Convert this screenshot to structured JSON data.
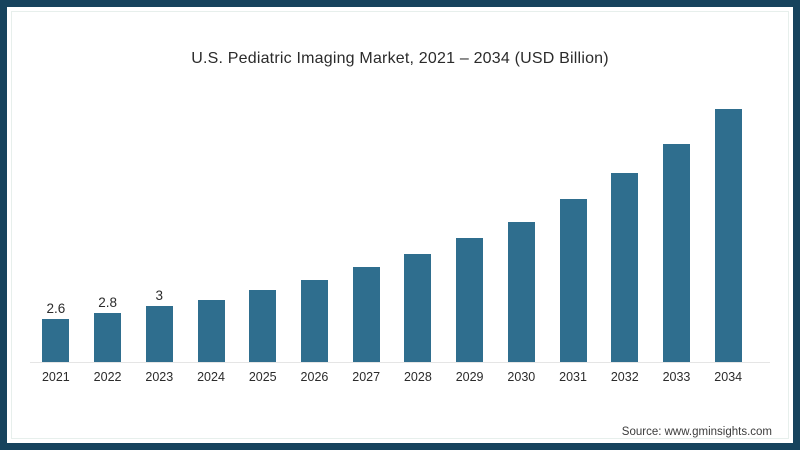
{
  "title": "U.S. Pediatric Imaging Market, 2021 – 2034 (USD Billion)",
  "source": "Source: www.gminsights.com",
  "frame": {
    "border_color": "#16435D",
    "inner_line_color": "#E7EFEC",
    "background": "#FFFFFF"
  },
  "chart_data": {
    "type": "bar",
    "title": "U.S. Pediatric Imaging Market, 2021 – 2034 (USD Billion)",
    "xlabel": "",
    "ylabel": "",
    "categories": [
      "2021",
      "2022",
      "2023",
      "2024",
      "2025",
      "2026",
      "2027",
      "2028",
      "2029",
      "2030",
      "2031",
      "2032",
      "2033",
      "2034"
    ],
    "values": [
      2.6,
      2.8,
      3.0,
      3.2,
      3.5,
      3.8,
      4.2,
      4.6,
      5.1,
      5.6,
      6.3,
      7.1,
      8.0,
      9.1
    ],
    "data_labels": [
      "2.6",
      "2.8",
      "3",
      "",
      "",
      "",
      "",
      "",
      "",
      "",
      "",
      "",
      "",
      ""
    ],
    "unlabeled_values_estimated": true,
    "ylim": [
      1.26,
      9.6
    ],
    "y_axis_visible": false,
    "grid": false,
    "legend": false,
    "bar_color": "#2F6E8E",
    "axis_line_color": "#E5E5E5"
  }
}
